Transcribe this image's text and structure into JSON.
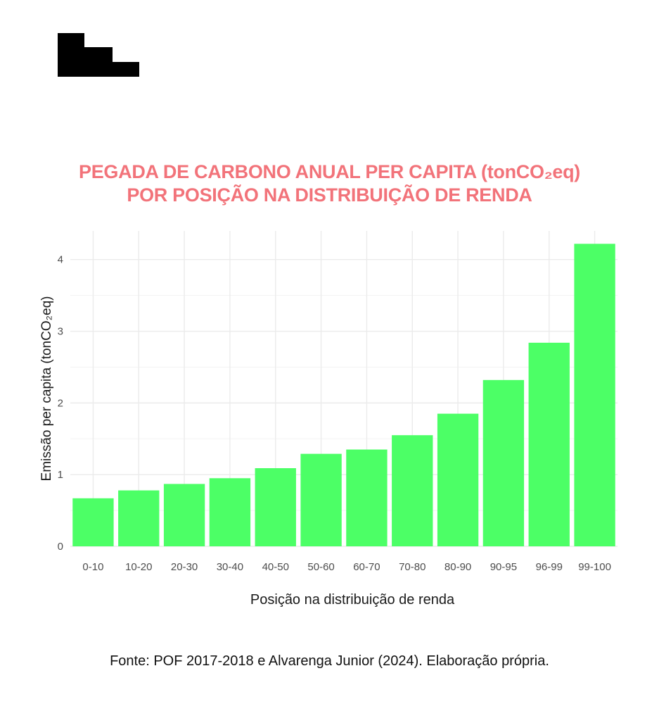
{
  "colors": {
    "title": "#f2737a",
    "bar": "#4cff66",
    "grid": "#ebebeb",
    "tick_text": "#4d4d4d",
    "axis_text": "#1a1a1a",
    "logo": "#000000"
  },
  "logo": {
    "icon": "stair-step-logo-icon"
  },
  "chart_data": {
    "type": "bar",
    "title": "PEGADA DE CARBONO ANUAL PER CAPITA (tonCO₂eq)",
    "subtitle": "POR POSIÇÃO NA DISTRIBUIÇÃO DE RENDA",
    "xlabel": "Posição na distribuição de renda",
    "ylabel": "Emissão per capita (tonCO₂eq)",
    "categories": [
      "0-10",
      "10-20",
      "20-30",
      "30-40",
      "40-50",
      "50-60",
      "60-70",
      "70-80",
      "80-90",
      "90-95",
      "96-99",
      "99-100"
    ],
    "values": [
      0.67,
      0.78,
      0.87,
      0.95,
      1.09,
      1.29,
      1.35,
      1.55,
      1.85,
      2.32,
      2.84,
      4.22
    ],
    "ylim": [
      0,
      4.4
    ],
    "yticks": [
      0,
      1,
      2,
      3,
      4
    ],
    "grid": true,
    "legend": "none"
  },
  "source": "Fonte: POF 2017-2018 e Alvarenga Junior (2024). Elaboração própria."
}
